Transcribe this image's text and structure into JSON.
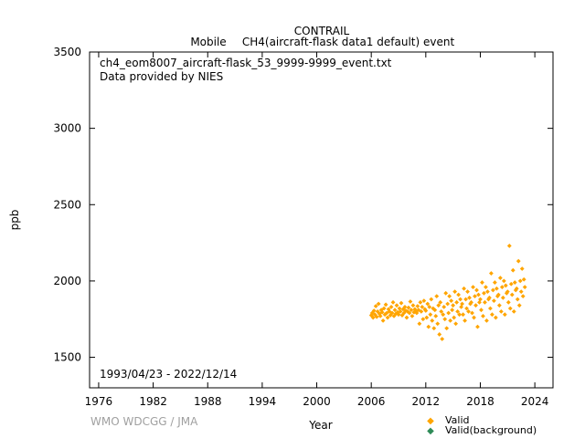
{
  "chart_data": {
    "type": "scatter",
    "title": "CONTRAIL",
    "subtitle_left": "Mobile",
    "subtitle_right": "CH4(aircraft-flask data1 default) event",
    "file_name": "ch4_eom8007_aircraft-flask_53_9999-9999_event.txt",
    "provider": "Data provided by NIES",
    "date_range": "1993/04/23 - 2022/12/14",
    "xlabel": "Year",
    "ylabel": "ppb",
    "xlim": [
      1975,
      2026
    ],
    "ylim": [
      1300,
      3500
    ],
    "xticks": [
      1976,
      1982,
      1988,
      1994,
      2000,
      2006,
      2012,
      2018,
      2024
    ],
    "yticks": [
      1500,
      2000,
      2500,
      3000,
      3500
    ],
    "grid": false,
    "legend_position": "bottom-right",
    "series": [
      {
        "name": "Valid",
        "color": "#ffa500",
        "points": [
          [
            2006.0,
            1775
          ],
          [
            2006.1,
            1790
          ],
          [
            2006.2,
            1760
          ],
          [
            2006.3,
            1805
          ],
          [
            2006.4,
            1780
          ],
          [
            2006.5,
            1835
          ],
          [
            2006.6,
            1765
          ],
          [
            2006.7,
            1800
          ],
          [
            2006.8,
            1850
          ],
          [
            2006.9,
            1785
          ],
          [
            2007.0,
            1770
          ],
          [
            2007.1,
            1810
          ],
          [
            2007.2,
            1795
          ],
          [
            2007.3,
            1740
          ],
          [
            2007.4,
            1820
          ],
          [
            2007.5,
            1780
          ],
          [
            2007.6,
            1845
          ],
          [
            2007.7,
            1790
          ],
          [
            2007.8,
            1760
          ],
          [
            2007.9,
            1815
          ],
          [
            2008.0,
            1800
          ],
          [
            2008.1,
            1775
          ],
          [
            2008.2,
            1830
          ],
          [
            2008.3,
            1790
          ],
          [
            2008.4,
            1860
          ],
          [
            2008.5,
            1770
          ],
          [
            2008.6,
            1810
          ],
          [
            2008.7,
            1785
          ],
          [
            2008.8,
            1840
          ],
          [
            2008.9,
            1795
          ],
          [
            2009.0,
            1780
          ],
          [
            2009.1,
            1820
          ],
          [
            2009.2,
            1800
          ],
          [
            2009.3,
            1855
          ],
          [
            2009.4,
            1775
          ],
          [
            2009.5,
            1815
          ],
          [
            2009.6,
            1790
          ],
          [
            2009.7,
            1830
          ],
          [
            2009.8,
            1805
          ],
          [
            2009.9,
            1760
          ],
          [
            2010.0,
            1800
          ],
          [
            2010.1,
            1825
          ],
          [
            2010.2,
            1790
          ],
          [
            2010.3,
            1865
          ],
          [
            2010.4,
            1810
          ],
          [
            2010.5,
            1770
          ],
          [
            2010.6,
            1840
          ],
          [
            2010.7,
            1795
          ],
          [
            2010.8,
            1815
          ],
          [
            2010.9,
            1800
          ],
          [
            2011.0,
            1790
          ],
          [
            2011.1,
            1835
          ],
          [
            2011.2,
            1810
          ],
          [
            2011.3,
            1720
          ],
          [
            2011.4,
            1860
          ],
          [
            2011.5,
            1800
          ],
          [
            2011.6,
            1830
          ],
          [
            2011.7,
            1750
          ],
          [
            2011.8,
            1870
          ],
          [
            2011.9,
            1815
          ],
          [
            2012.0,
            1805
          ],
          [
            2012.1,
            1760
          ],
          [
            2012.2,
            1850
          ],
          [
            2012.3,
            1700
          ],
          [
            2012.4,
            1830
          ],
          [
            2012.5,
            1780
          ],
          [
            2012.6,
            1880
          ],
          [
            2012.7,
            1740
          ],
          [
            2012.8,
            1820
          ],
          [
            2012.9,
            1690
          ],
          [
            2013.0,
            1810
          ],
          [
            2013.1,
            1770
          ],
          [
            2013.2,
            1900
          ],
          [
            2013.3,
            1720
          ],
          [
            2013.4,
            1840
          ],
          [
            2013.5,
            1650
          ],
          [
            2013.6,
            1860
          ],
          [
            2013.7,
            1800
          ],
          [
            2013.8,
            1620
          ],
          [
            2013.9,
            1780
          ],
          [
            2014.0,
            1830
          ],
          [
            2014.1,
            1750
          ],
          [
            2014.2,
            1920
          ],
          [
            2014.3,
            1690
          ],
          [
            2014.4,
            1850
          ],
          [
            2014.5,
            1790
          ],
          [
            2014.6,
            1900
          ],
          [
            2014.7,
            1740
          ],
          [
            2014.8,
            1870
          ],
          [
            2014.9,
            1810
          ],
          [
            2015.0,
            1840
          ],
          [
            2015.1,
            1760
          ],
          [
            2015.2,
            1930
          ],
          [
            2015.3,
            1720
          ],
          [
            2015.4,
            1860
          ],
          [
            2015.5,
            1800
          ],
          [
            2015.6,
            1910
          ],
          [
            2015.7,
            1780
          ],
          [
            2015.8,
            1880
          ],
          [
            2015.9,
            1830
          ],
          [
            2016.0,
            1850
          ],
          [
            2016.1,
            1780
          ],
          [
            2016.2,
            1950
          ],
          [
            2016.3,
            1740
          ],
          [
            2016.4,
            1880
          ],
          [
            2016.5,
            1820
          ],
          [
            2016.6,
            1930
          ],
          [
            2016.7,
            1800
          ],
          [
            2016.8,
            1890
          ],
          [
            2016.9,
            1850
          ],
          [
            2017.0,
            1860
          ],
          [
            2017.1,
            1790
          ],
          [
            2017.2,
            1960
          ],
          [
            2017.3,
            1760
          ],
          [
            2017.4,
            1900
          ],
          [
            2017.5,
            1840
          ],
          [
            2017.6,
            1940
          ],
          [
            2017.7,
            1700
          ],
          [
            2017.8,
            1910
          ],
          [
            2017.9,
            1860
          ],
          [
            2018.0,
            1880
          ],
          [
            2018.1,
            1810
          ],
          [
            2018.2,
            1990
          ],
          [
            2018.3,
            1770
          ],
          [
            2018.4,
            1920
          ],
          [
            2018.5,
            1860
          ],
          [
            2018.6,
            1960
          ],
          [
            2018.7,
            1740
          ],
          [
            2018.8,
            1930
          ],
          [
            2018.9,
            1880
          ],
          [
            2019.0,
            1890
          ],
          [
            2019.1,
            1820
          ],
          [
            2019.2,
            2050
          ],
          [
            2019.3,
            1780
          ],
          [
            2019.4,
            1940
          ],
          [
            2019.5,
            1870
          ],
          [
            2019.6,
            1990
          ],
          [
            2019.7,
            1760
          ],
          [
            2019.8,
            1950
          ],
          [
            2019.9,
            1900
          ],
          [
            2020.0,
            1910
          ],
          [
            2020.1,
            1840
          ],
          [
            2020.2,
            2020
          ],
          [
            2020.3,
            1800
          ],
          [
            2020.4,
            1960
          ],
          [
            2020.5,
            1890
          ],
          [
            2020.6,
            2000
          ],
          [
            2020.7,
            1780
          ],
          [
            2020.8,
            1970
          ],
          [
            2020.9,
            1920
          ],
          [
            2021.0,
            1930
          ],
          [
            2021.1,
            1860
          ],
          [
            2021.2,
            2230
          ],
          [
            2021.3,
            1820
          ],
          [
            2021.4,
            1980
          ],
          [
            2021.5,
            1910
          ],
          [
            2021.6,
            2070
          ],
          [
            2021.7,
            1800
          ],
          [
            2021.8,
            1990
          ],
          [
            2021.9,
            1940
          ],
          [
            2022.0,
            1950
          ],
          [
            2022.1,
            1880
          ],
          [
            2022.2,
            2130
          ],
          [
            2022.3,
            1840
          ],
          [
            2022.4,
            2000
          ],
          [
            2022.5,
            1930
          ],
          [
            2022.6,
            2080
          ],
          [
            2022.7,
            1900
          ],
          [
            2022.8,
            2010
          ],
          [
            2022.9,
            1960
          ]
        ]
      },
      {
        "name": "Valid(background)",
        "color": "#2e8b57",
        "points": []
      }
    ]
  },
  "footer": {
    "credit": "WMO WDCGG / JMA"
  }
}
